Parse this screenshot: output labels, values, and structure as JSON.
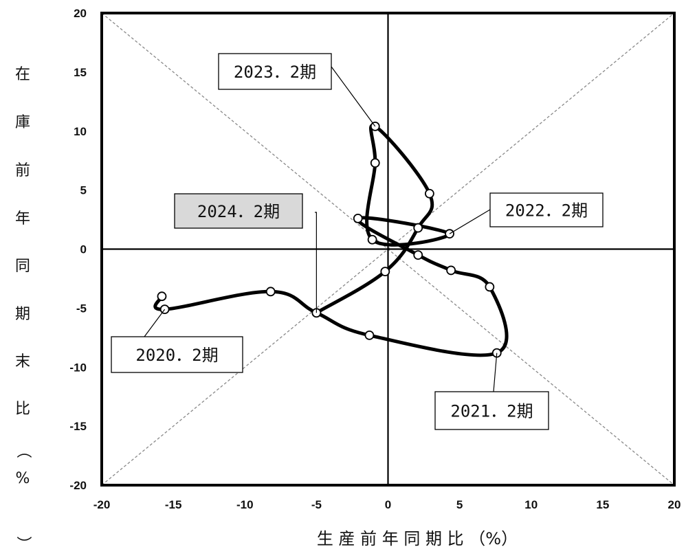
{
  "chart_data": {
    "type": "scatter",
    "connected": true,
    "smooth": true,
    "xlabel": "生 産 前 年 同 期 比 （%）",
    "ylabel": "在庫前年同期末比（%）",
    "xlim": [
      -20,
      20
    ],
    "ylim": [
      -20,
      20
    ],
    "xticks": [
      "-20",
      "-15",
      "-10",
      "-5",
      "0",
      "5",
      "10",
      "15",
      "20"
    ],
    "yticks": [
      "20",
      "15",
      "10",
      "5",
      "0",
      "-5",
      "-10",
      "-15",
      "-20"
    ],
    "xtick_values": [
      -20,
      -15,
      -10,
      -5,
      0,
      5,
      10,
      15,
      20
    ],
    "ytick_values": [
      20,
      15,
      10,
      5,
      0,
      -5,
      -10,
      -15,
      -20
    ],
    "grid": false,
    "reference_lines": [
      "x = 0",
      "y = 0",
      "y = x (dashed)",
      "y = -x (dashed)"
    ],
    "series": [
      {
        "points": [
          {
            "x": -15.8,
            "y": -4.0
          },
          {
            "x": -15.6,
            "y": -5.1
          },
          {
            "x": -8.2,
            "y": -3.6
          },
          {
            "x": -5.0,
            "y": -5.4
          },
          {
            "x": -1.3,
            "y": -7.3
          },
          {
            "x": 7.6,
            "y": -8.8
          },
          {
            "x": 7.1,
            "y": -3.2
          },
          {
            "x": 4.4,
            "y": -1.8
          },
          {
            "x": 2.1,
            "y": -0.5
          },
          {
            "x": -2.1,
            "y": 2.6
          },
          {
            "x": 4.3,
            "y": 1.3
          },
          {
            "x": -1.1,
            "y": 0.8
          },
          {
            "x": -0.9,
            "y": 7.3
          },
          {
            "x": -0.9,
            "y": 10.4
          },
          {
            "x": 2.9,
            "y": 4.7
          },
          {
            "x": 2.1,
            "y": 1.8
          },
          {
            "x": -0.2,
            "y": -1.9
          },
          {
            "x": -5.0,
            "y": -5.4
          }
        ]
      }
    ],
    "annotations": [
      {
        "text": "2023．2期",
        "point_index": 13,
        "highlight": false
      },
      {
        "text": "2022．2期",
        "point_index": 10,
        "highlight": false
      },
      {
        "text": "2024．2期",
        "point_index": 17,
        "highlight": true
      },
      {
        "text": "2020．2期",
        "point_index": 1,
        "highlight": false
      },
      {
        "text": "2021．2期",
        "point_index": 5,
        "highlight": false
      }
    ],
    "colors": {
      "line": "#000000",
      "marker_fill": "#ffffff",
      "highlight_fill": "#d9d9d9",
      "diagonal": "#888888"
    }
  }
}
